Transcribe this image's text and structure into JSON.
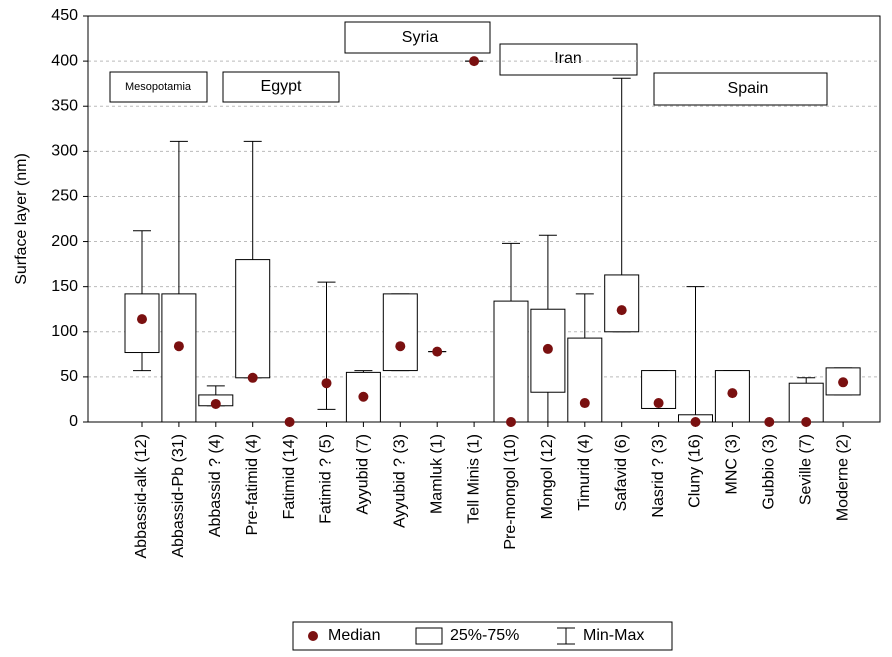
{
  "chart_data": {
    "type": "box",
    "ylabel": "Surface layer (nm)",
    "ylim": [
      0,
      450
    ],
    "yticks": [
      0,
      50,
      100,
      150,
      200,
      250,
      300,
      350,
      400,
      450
    ],
    "grid": true,
    "categories": [
      "Abbassid-alk (12)",
      "Abbassid-Pb (31)",
      "Abbassid ? (4)",
      "Pre-fatimid (4)",
      "Fatimid (14)",
      "Fatimid ? (5)",
      "Ayyubid (7)",
      "Ayyubid ? (3)",
      "Mamluk (1)",
      "Tell Minis (1)",
      "Pre-mongol (10)",
      "Mongol (12)",
      "Timurid (4)",
      "Safavid (6)",
      "Nasrid ? (3)",
      "Cluny (16)",
      "MNC (3)",
      "Gubbio (3)",
      "Seville (7)",
      "Moderne (2)"
    ],
    "min": [
      57,
      0,
      18,
      49,
      0,
      14,
      0,
      57,
      78,
      400,
      0,
      0,
      0,
      100,
      15,
      0,
      0,
      0,
      0,
      30
    ],
    "q1": [
      77,
      0,
      18,
      49,
      0,
      43,
      0,
      57,
      78,
      400,
      0,
      33,
      0,
      100,
      15,
      0,
      0,
      0,
      0,
      30
    ],
    "median": [
      114,
      84,
      20,
      49,
      0,
      43,
      28,
      84,
      78,
      400,
      0,
      81,
      21,
      124,
      21,
      0,
      32,
      0,
      0,
      44
    ],
    "q3": [
      142,
      142,
      30,
      180,
      0,
      43,
      55,
      142,
      78,
      400,
      134,
      125,
      93,
      163,
      57,
      8,
      57,
      0,
      43,
      60
    ],
    "max": [
      212,
      311,
      40,
      311,
      0,
      155,
      57,
      142,
      78,
      400,
      198,
      207,
      142,
      381,
      57,
      150,
      57,
      0,
      49,
      60
    ],
    "median_color": "#7a1010",
    "legend": [
      "Median",
      "25%-75%",
      "Min-Max"
    ],
    "annotations": [
      "Mesopotamia",
      "Egypt",
      "Syria",
      "Iran",
      "Spain"
    ]
  }
}
